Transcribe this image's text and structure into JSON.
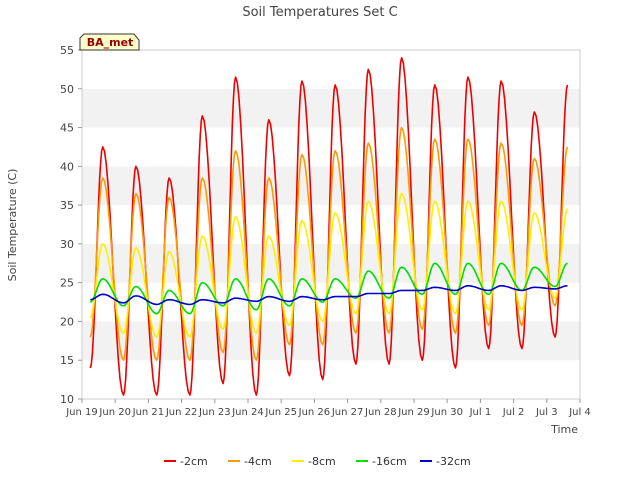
{
  "chart_data": {
    "type": "line",
    "title": "Soil Temperatures Set C",
    "xlabel": "Time",
    "ylabel": "Soil Temperature (C)",
    "site_label": "BA_met",
    "ylim": [
      10,
      55
    ],
    "yticks": [
      10,
      15,
      20,
      25,
      30,
      35,
      40,
      45,
      50,
      55
    ],
    "xlim": [
      "2023-06-19",
      "2023-07-04"
    ],
    "xtick_labels": [
      "Jun 19",
      "Jun 20",
      "Jun 21",
      "Jun 22",
      "Jun 23",
      "Jun 24",
      "Jun 25",
      "Jun 26",
      "Jun 27",
      "Jun 28",
      "Jun 29",
      "Jun 30",
      "Jul 1",
      "Jul 2",
      "Jul 3",
      "Jul 4"
    ],
    "grid": "horizontal bands",
    "legend_position": "bottom",
    "x": [
      "2023-06-19 12:00",
      "2023-06-20 12:00",
      "2023-06-21 12:00",
      "2023-06-22 12:00",
      "2023-06-23 12:00",
      "2023-06-24 12:00",
      "2023-06-25 12:00",
      "2023-06-26 12:00",
      "2023-06-27 12:00",
      "2023-06-28 12:00",
      "2023-06-29 12:00",
      "2023-06-30 12:00",
      "2023-07-01 12:00",
      "2023-07-02 12:00",
      "2023-07-03 12:00"
    ],
    "series": [
      {
        "name": "-2cm",
        "color": "#ee0000",
        "daily_max": [
          42.5,
          40.0,
          38.5,
          46.5,
          51.5,
          46.0,
          51.0,
          50.5,
          52.5,
          54.0,
          50.5,
          51.5,
          51.0,
          47.0,
          50.5
        ],
        "daily_min": [
          14.0,
          10.5,
          10.5,
          10.5,
          12.0,
          10.5,
          13.0,
          12.5,
          14.5,
          14.5,
          15.0,
          14.0,
          16.5,
          16.5,
          18.0
        ]
      },
      {
        "name": "-4cm",
        "color": "#ff9900",
        "daily_max": [
          38.5,
          36.5,
          36.0,
          38.5,
          42.0,
          38.5,
          41.5,
          42.0,
          43.0,
          45.0,
          43.5,
          43.5,
          43.0,
          41.0,
          42.5
        ],
        "daily_min": [
          18.0,
          15.0,
          15.0,
          15.0,
          16.0,
          15.0,
          17.0,
          17.0,
          18.5,
          18.5,
          19.0,
          18.5,
          19.5,
          19.5,
          22.0
        ]
      },
      {
        "name": "-8cm",
        "color": "#ffee00",
        "daily_max": [
          30.0,
          29.5,
          29.0,
          31.0,
          33.5,
          31.0,
          33.0,
          34.0,
          35.5,
          36.5,
          35.5,
          35.5,
          35.5,
          34.0,
          34.5
        ],
        "daily_min": [
          20.5,
          18.5,
          18.0,
          18.0,
          19.0,
          18.5,
          19.5,
          20.0,
          21.0,
          21.0,
          21.5,
          21.0,
          21.5,
          21.5,
          23.0
        ]
      },
      {
        "name": "-16cm",
        "color": "#00dd00",
        "daily_max": [
          25.5,
          24.5,
          24.0,
          25.0,
          25.5,
          25.5,
          25.5,
          25.5,
          26.5,
          27.0,
          27.5,
          27.5,
          27.5,
          27.0,
          27.5
        ],
        "daily_min": [
          22.5,
          22.0,
          21.0,
          21.0,
          22.0,
          21.5,
          22.0,
          22.5,
          23.0,
          23.0,
          23.5,
          23.5,
          23.5,
          24.0,
          24.5
        ]
      },
      {
        "name": "-32cm",
        "color": "#0000cc",
        "daily_max": [
          23.5,
          23.3,
          22.8,
          22.8,
          23.0,
          23.2,
          23.2,
          23.2,
          23.6,
          24.0,
          24.4,
          24.6,
          24.6,
          24.4,
          24.6
        ],
        "daily_min": [
          22.8,
          22.4,
          22.2,
          22.2,
          22.4,
          22.6,
          22.6,
          22.8,
          23.2,
          23.6,
          24.0,
          24.0,
          24.0,
          24.0,
          24.2
        ]
      }
    ]
  }
}
